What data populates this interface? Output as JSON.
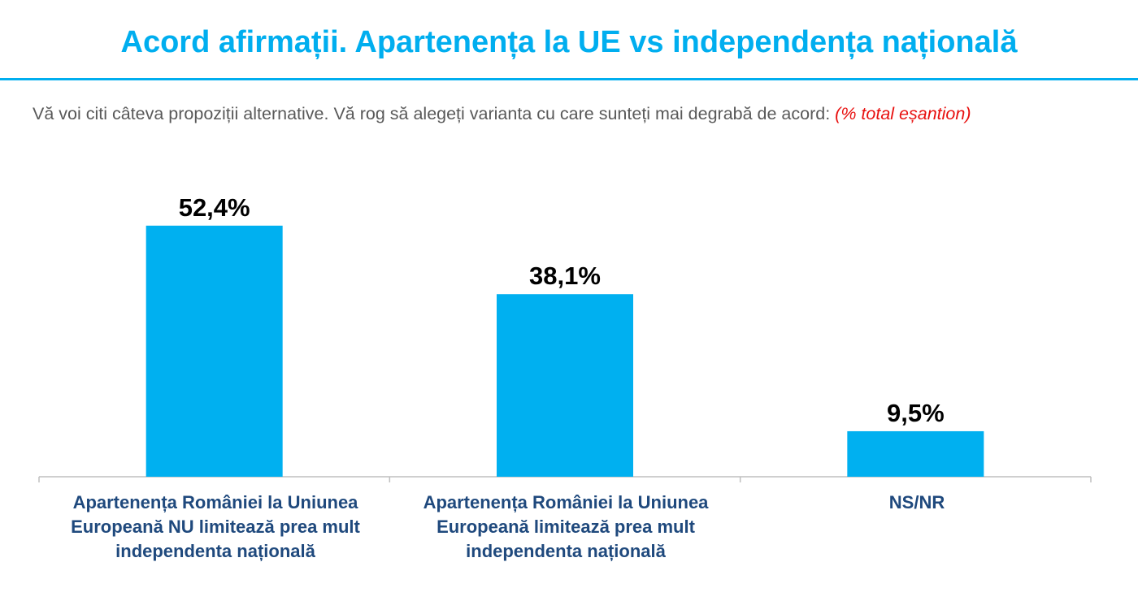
{
  "header": {
    "title": "Acord afirmații. Apartenența la UE vs independența națională",
    "subtitle": "Vă voi citi câteva propoziții alternative. Vă rog să alegeți varianta cu care sunteți mai degrabă de acord:",
    "subtitle_note": "(% total eșantion)"
  },
  "colors": {
    "accent": "#00AEEF",
    "bar": "#00B0F0",
    "category_text": "#1F497D",
    "note": "#E8100F"
  },
  "chart_data": {
    "type": "bar",
    "categories": [
      "Apartenența României la Uniunea Europeană NU limitează prea mult independenta națională",
      "Apartenența României la Uniunea Europeană limitează prea mult independenta națională",
      "NS/NR"
    ],
    "values": [
      52.4,
      38.1,
      9.5
    ],
    "value_labels": [
      "52,4%",
      "38,1%",
      "9,5%"
    ],
    "ylim": [
      0,
      60
    ],
    "grid": false,
    "legend": "none"
  }
}
